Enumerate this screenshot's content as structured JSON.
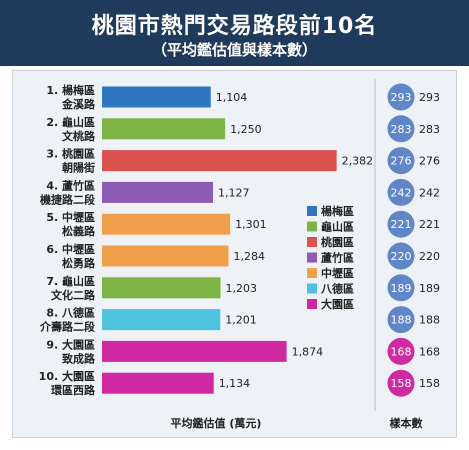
{
  "title": "桃園市熱門交易路段前10名",
  "subtitle": "（平均鑑估值與樣本數）",
  "chart_data": {
    "type": "bar",
    "orientation": "horizontal",
    "xlabel": "平均鑑估值 (萬元)",
    "count_label": "樣本數",
    "categories": [
      {
        "rank": "1.",
        "district": "楊梅區",
        "road": "金溪路"
      },
      {
        "rank": "2.",
        "district": "龜山區",
        "road": "文桃路"
      },
      {
        "rank": "3.",
        "district": "桃園區",
        "road": "朝陽街"
      },
      {
        "rank": "4.",
        "district": "蘆竹區",
        "road": "機捷路二段"
      },
      {
        "rank": "5.",
        "district": "中壢區",
        "road": "松義路"
      },
      {
        "rank": "6.",
        "district": "中壢區",
        "road": "松勇路"
      },
      {
        "rank": "7.",
        "district": "龜山區",
        "road": "文化二路"
      },
      {
        "rank": "8.",
        "district": "八德區",
        "road": "介壽路二段"
      },
      {
        "rank": "9.",
        "district": "大園區",
        "road": "致成路"
      },
      {
        "rank": "10.",
        "district": "大園區",
        "road": "環區西路"
      }
    ],
    "values": [
      1104,
      1250,
      2382,
      1127,
      1301,
      1284,
      1203,
      1201,
      1874,
      1134
    ],
    "value_labels": [
      "1,104",
      "1,250",
      "2,382",
      "1,127",
      "1,301",
      "1,284",
      "1,203",
      "1,201",
      "1,874",
      "1,134"
    ],
    "counts": [
      293,
      283,
      276,
      242,
      221,
      220,
      189,
      188,
      168,
      158
    ],
    "legend": [
      {
        "name": "楊梅區",
        "color": "#2f77c0"
      },
      {
        "name": "龜山區",
        "color": "#7cb342"
      },
      {
        "name": "桃園區",
        "color": "#d9534f"
      },
      {
        "name": "蘆竹區",
        "color": "#8e5bb4"
      },
      {
        "name": "中壢區",
        "color": "#f0a04b"
      },
      {
        "name": "八德區",
        "color": "#4ec3e0"
      },
      {
        "name": "大園區",
        "color": "#cf2aa3"
      }
    ],
    "count_circle_color": "#5f86c6",
    "count_circle_highlight": "#cf2aa3",
    "xlim": [
      0,
      2600
    ],
    "grid": false,
    "legend_position": "center-right"
  }
}
